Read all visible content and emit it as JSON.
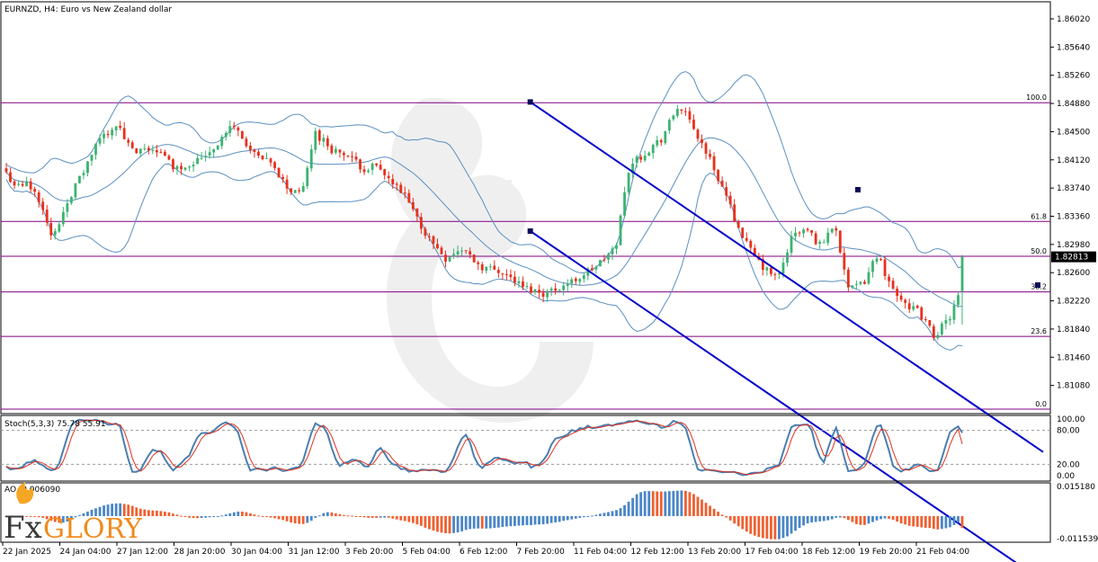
{
  "title": "EURNZD, H4:  Euro vs New Zealand dollar",
  "current_price": "1.82813",
  "colors": {
    "bull": "#3cb371",
    "bear": "#e8301c",
    "bands": "#5b8fc0",
    "fib": "#800080",
    "channel": "#0000cc",
    "stoch_k": "#4a7fb0",
    "stoch_d": "#e03020",
    "ao_up": "#4a86c8",
    "ao_down": "#f06030"
  },
  "logo": {
    "text": "FxGlory"
  },
  "chart_data": [
    {
      "type": "candlestick",
      "panel": "price",
      "y_ticks": [
        "1.86020",
        "1.85640",
        "1.85260",
        "1.84880",
        "1.84500",
        "1.84120",
        "1.83740",
        "1.83360",
        "1.82980",
        "1.82600",
        "1.82220",
        "1.81840",
        "1.81460",
        "1.81080"
      ],
      "ylim": [
        1.807,
        1.8625
      ],
      "x_ticks": [
        "22 Jan 2025",
        "24 Jan 04:00",
        "27 Jan 12:00",
        "28 Jan 20:00",
        "30 Jan 04:00",
        "31 Jan 12:00",
        "3 Feb 20:00",
        "5 Feb 04:00",
        "6 Feb 12:00",
        "7 Feb 20:00",
        "11 Feb 04:00",
        "12 Feb 12:00",
        "13 Feb 20:00",
        "17 Feb 04:00",
        "18 Feb 12:00",
        "19 Feb 20:00",
        "21 Feb 04:00"
      ],
      "fibonacci": [
        {
          "level": "100.0",
          "price": 1.8489
        },
        {
          "level": "61.8",
          "price": 1.8329
        },
        {
          "level": "50.0",
          "price": 1.8282
        },
        {
          "level": "38.2",
          "price": 1.8234
        },
        {
          "level": "23.6",
          "price": 1.8174
        },
        {
          "level": "0.0",
          "price": 1.8076
        }
      ],
      "channel": {
        "upper": [
          {
            "bar": 148,
            "price": 1.849
          },
          {
            "bar": 226,
            "price": 1.8236
          }
        ],
        "lower": [
          {
            "bar": 148,
            "price": 1.8316
          },
          {
            "bar": 226,
            "price": 1.8062
          }
        ]
      },
      "indicators": [
        "Bollinger Bands"
      ]
    },
    {
      "type": "line",
      "panel": "stochastic",
      "label": "Stoch(5,3,3) 75.78 55.91",
      "levels": [
        "100.00",
        "80.00",
        "20.00",
        "0.00"
      ],
      "series_names": [
        "%K",
        "%D"
      ],
      "last_values": [
        75.78,
        55.91
      ]
    },
    {
      "type": "bar",
      "panel": "awesome-oscillator",
      "label": "AO -0.006090",
      "y_ticks": [
        "0.015180",
        "-0.011539"
      ],
      "last_value": -0.00609
    }
  ]
}
